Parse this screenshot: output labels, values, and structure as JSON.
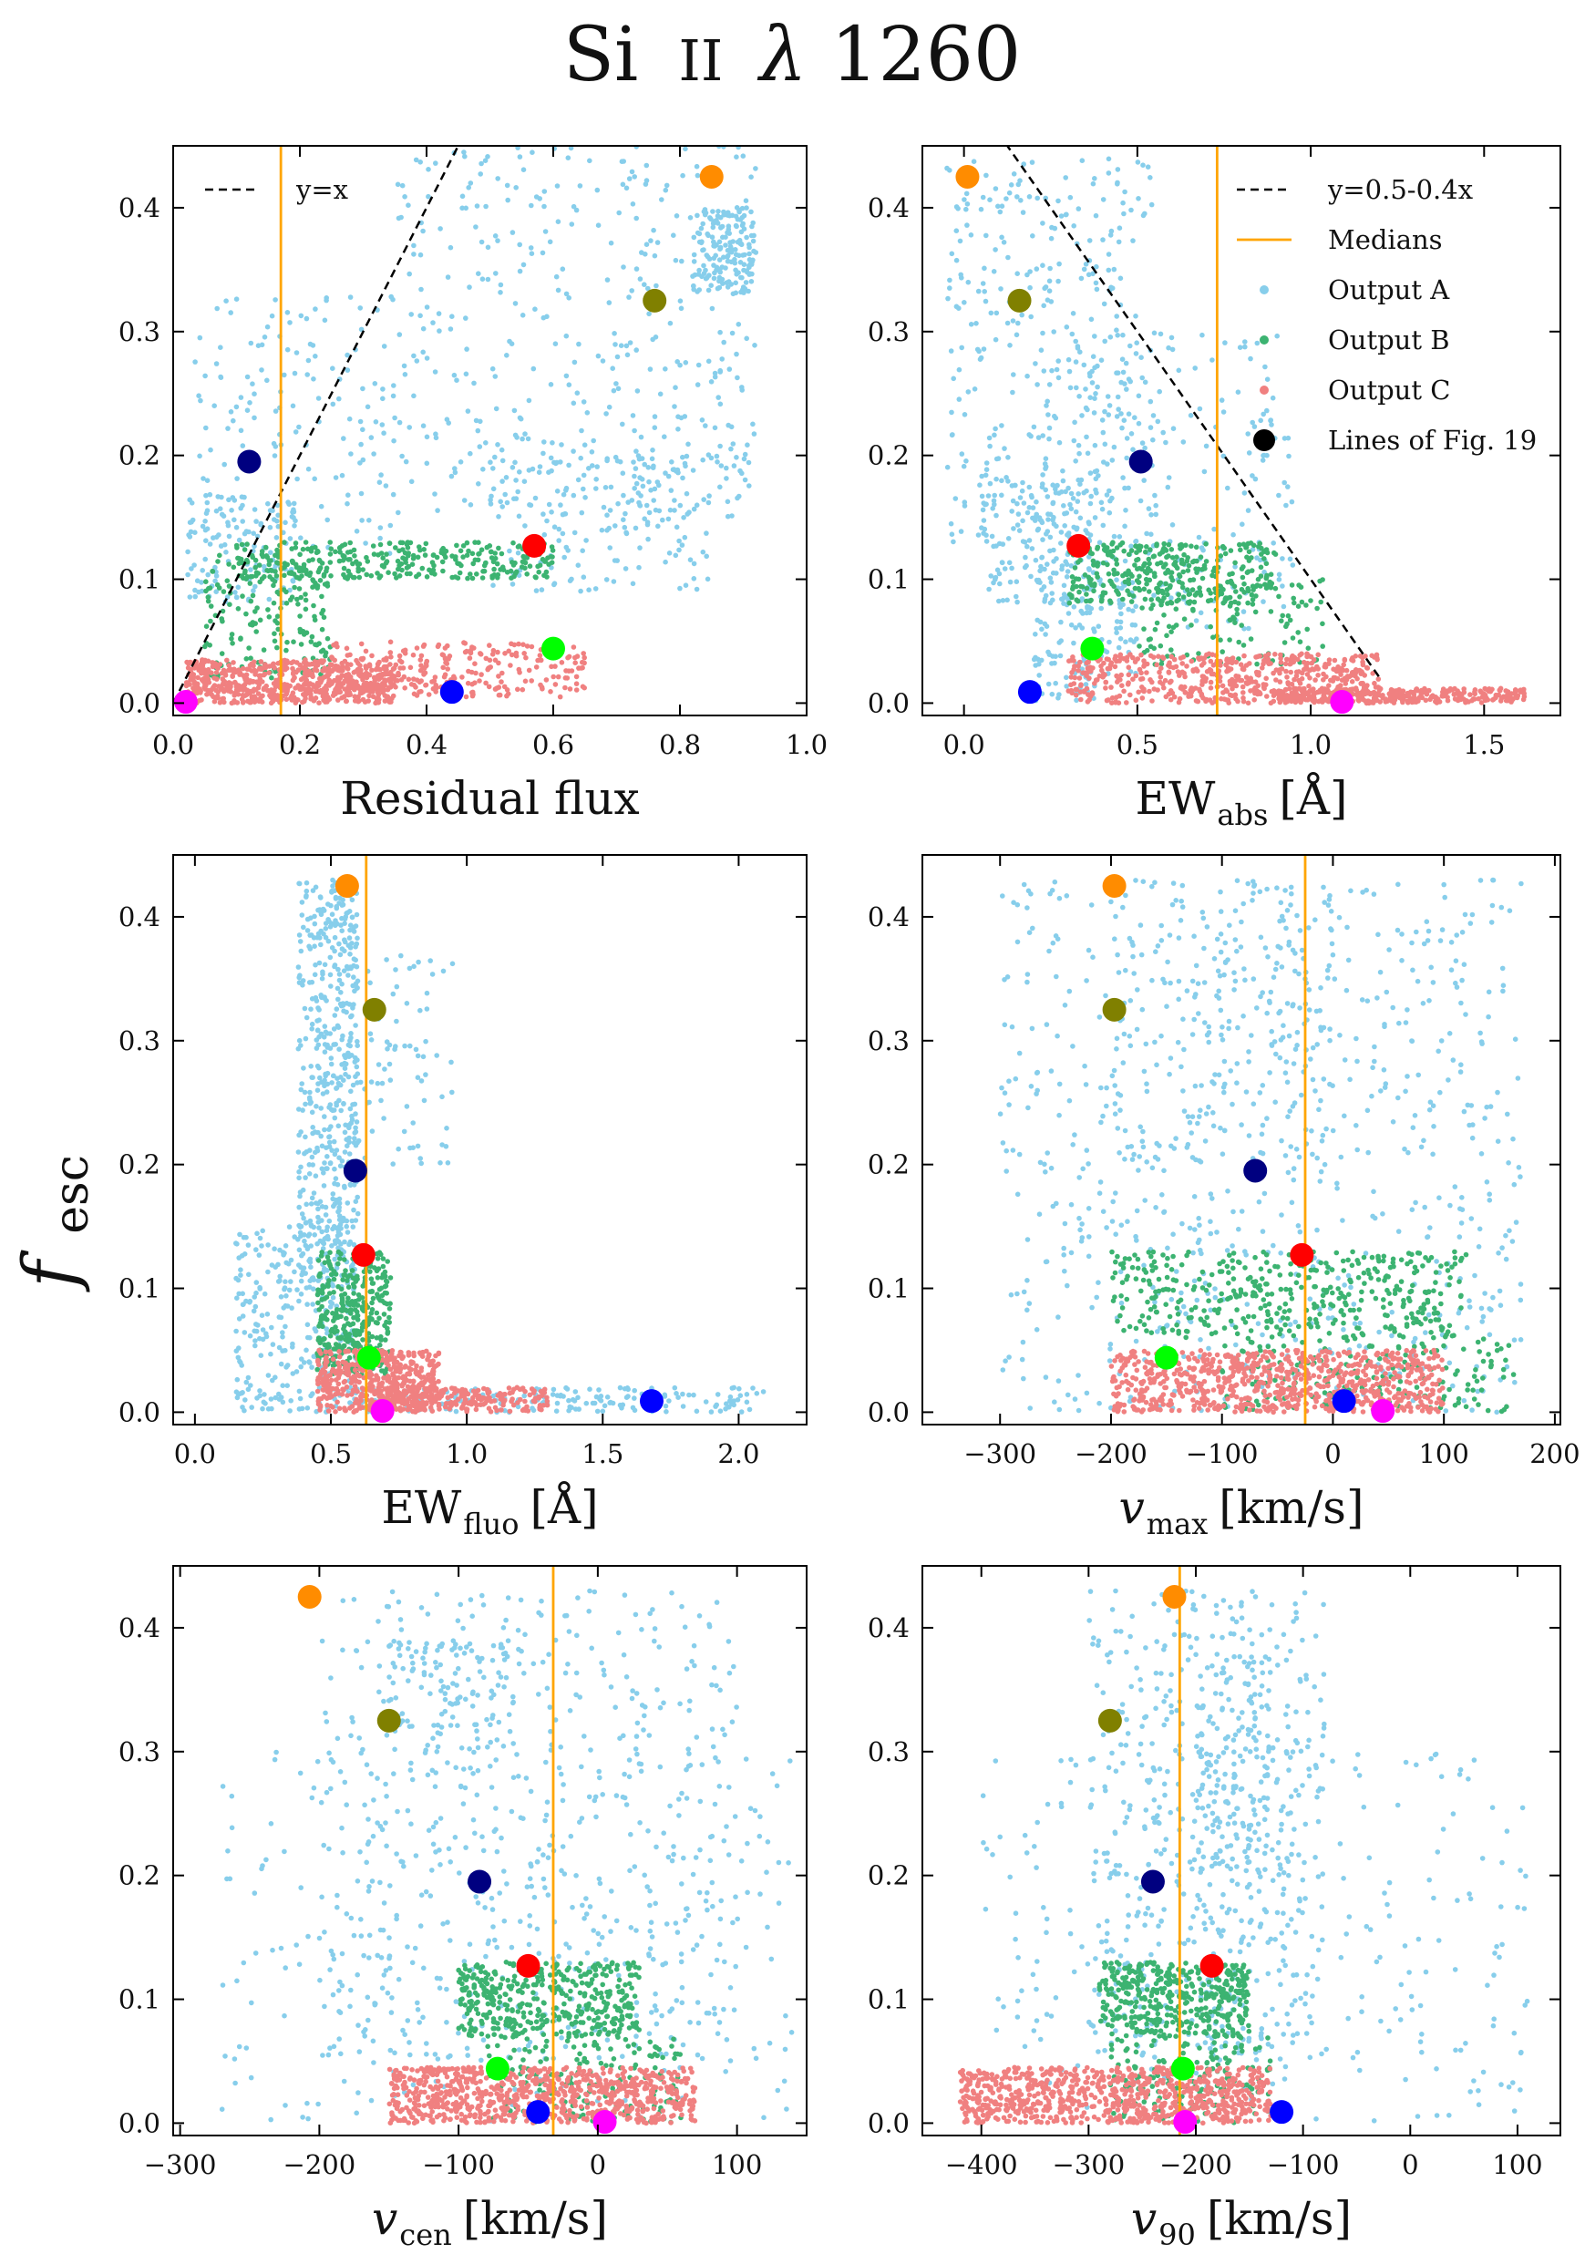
{
  "figure": {
    "title": {
      "main": "Si",
      "ion": "II",
      "lambda": "λ",
      "wave": "1260"
    },
    "ylabel": {
      "symbol": "f",
      "sub": "esc"
    },
    "colors": {
      "output_a": "#87ceeb",
      "output_b": "#3cb371",
      "output_c": "#f08080",
      "median": "#ffa500",
      "dashed": "#000000"
    }
  },
  "chart_data": [
    {
      "id": "p1",
      "type": "scatter",
      "xlabel": {
        "main": "Residual flux",
        "sub": "",
        "unit": ""
      },
      "xlim": [
        0.0,
        1.0
      ],
      "ylim": [
        -0.01,
        0.45
      ],
      "xticks": [
        0.0,
        0.2,
        0.4,
        0.6,
        0.8,
        1.0
      ],
      "xtick_labels": [
        "0.0",
        "0.2",
        "0.4",
        "0.6",
        "0.8",
        "1.0"
      ],
      "yticks": [
        0.0,
        0.1,
        0.2,
        0.3,
        0.4
      ],
      "ytick_labels": [
        "0.0",
        "0.1",
        "0.2",
        "0.3",
        "0.4"
      ],
      "median_x": 0.17,
      "ref_line": {
        "slope": 1.0,
        "intercept": 0.0,
        "x0": 0.0,
        "x1": 0.45
      },
      "legend": {
        "position": "upper-left",
        "entries": [
          {
            "kind": "dashed",
            "label": "y=x"
          }
        ]
      },
      "clouds": {
        "A": [
          {
            "n": 420,
            "x": [
              0.35,
              0.92
            ],
            "y": [
              0.15,
              0.45
            ]
          },
          {
            "n": 160,
            "x": [
              0.03,
              0.35
            ],
            "y": [
              0.12,
              0.33
            ]
          },
          {
            "n": 160,
            "x": [
              0.5,
              0.85
            ],
            "y": [
              0.09,
              0.2
            ]
          },
          {
            "n": 160,
            "x": [
              0.82,
              0.92
            ],
            "y": [
              0.33,
              0.4
            ]
          },
          {
            "n": 120,
            "x": [
              0.02,
              0.2
            ],
            "y": [
              0.08,
              0.17
            ]
          }
        ],
        "B": [
          {
            "n": 320,
            "x": [
              0.1,
              0.6
            ],
            "y": [
              0.1,
              0.13
            ]
          },
          {
            "n": 180,
            "x": [
              0.05,
              0.25
            ],
            "y": [
              0.02,
              0.12
            ]
          }
        ],
        "C": [
          {
            "n": 650,
            "x": [
              0.02,
              0.35
            ],
            "y": [
              0.0,
              0.035
            ]
          },
          {
            "n": 260,
            "x": [
              0.25,
              0.65
            ],
            "y": [
              0.005,
              0.05
            ]
          }
        ]
      },
      "markers": [
        {
          "name": "orange",
          "color": "#ff8c00",
          "x": 0.85,
          "y": 0.425
        },
        {
          "name": "olive",
          "color": "#808000",
          "x": 0.76,
          "y": 0.325
        },
        {
          "name": "navy",
          "color": "#000080",
          "x": 0.12,
          "y": 0.195
        },
        {
          "name": "red",
          "color": "#ff0000",
          "x": 0.57,
          "y": 0.127
        },
        {
          "name": "lime",
          "color": "#00ff00",
          "x": 0.6,
          "y": 0.044
        },
        {
          "name": "blue",
          "color": "#0000ff",
          "x": 0.44,
          "y": 0.009
        },
        {
          "name": "magenta",
          "color": "#ff00ff",
          "x": 0.02,
          "y": 0.001
        }
      ]
    },
    {
      "id": "p2",
      "type": "scatter",
      "xlabel": {
        "main": "EW",
        "sub": "abs",
        "unit": "[Å]"
      },
      "xlim": [
        -0.12,
        1.72
      ],
      "ylim": [
        -0.01,
        0.45
      ],
      "xticks": [
        0.0,
        0.5,
        1.0,
        1.5
      ],
      "xtick_labels": [
        "0.0",
        "0.5",
        "1.0",
        "1.5"
      ],
      "yticks": [
        0.0,
        0.1,
        0.2,
        0.3,
        0.4
      ],
      "ytick_labels": [
        "0.0",
        "0.1",
        "0.2",
        "0.3",
        "0.4"
      ],
      "median_x": 0.73,
      "ref_line": {
        "slope": -0.4,
        "intercept": 0.5,
        "x0": 0.12,
        "x1": 1.2
      },
      "legend": {
        "position": "upper-right",
        "entries": [
          {
            "kind": "dashed",
            "label": "y=0.5-0.4x"
          },
          {
            "kind": "line",
            "label": "Medians"
          },
          {
            "kind": "dotA",
            "label": "Output A"
          },
          {
            "kind": "dotB",
            "label": "Output B"
          },
          {
            "kind": "dotC",
            "label": "Output C"
          },
          {
            "kind": "big",
            "label": "Lines of Fig. 19"
          }
        ]
      },
      "clouds": {
        "A": [
          {
            "n": 330,
            "x": [
              -0.05,
              0.55
            ],
            "y": [
              0.13,
              0.44
            ]
          },
          {
            "n": 230,
            "x": [
              0.2,
              0.95
            ],
            "y": [
              0.06,
              0.3
            ]
          },
          {
            "n": 150,
            "x": [
              0.05,
              0.4
            ],
            "y": [
              0.08,
              0.18
            ]
          },
          {
            "n": 120,
            "x": [
              0.2,
              0.5
            ],
            "y": [
              0.0,
              0.1
            ]
          }
        ],
        "B": [
          {
            "n": 330,
            "x": [
              0.3,
              0.9
            ],
            "y": [
              0.08,
              0.13
            ]
          },
          {
            "n": 130,
            "x": [
              0.5,
              1.05
            ],
            "y": [
              0.03,
              0.1
            ]
          }
        ],
        "C": [
          {
            "n": 560,
            "x": [
              0.3,
              1.2
            ],
            "y": [
              0.0,
              0.04
            ]
          },
          {
            "n": 320,
            "x": [
              0.9,
              1.62
            ],
            "y": [
              0.0,
              0.012
            ]
          }
        ]
      },
      "markers": [
        {
          "name": "orange",
          "color": "#ff8c00",
          "x": 0.01,
          "y": 0.425
        },
        {
          "name": "olive",
          "color": "#808000",
          "x": 0.16,
          "y": 0.325
        },
        {
          "name": "navy",
          "color": "#000080",
          "x": 0.51,
          "y": 0.195
        },
        {
          "name": "red",
          "color": "#ff0000",
          "x": 0.33,
          "y": 0.127
        },
        {
          "name": "lime",
          "color": "#00ff00",
          "x": 0.37,
          "y": 0.044
        },
        {
          "name": "blue",
          "color": "#0000ff",
          "x": 0.19,
          "y": 0.009
        },
        {
          "name": "magenta",
          "color": "#ff00ff",
          "x": 1.09,
          "y": 0.001
        }
      ]
    },
    {
      "id": "p3",
      "type": "scatter",
      "xlabel": {
        "main": "EW",
        "sub": "fluo",
        "unit": "[Å]"
      },
      "xlim": [
        -0.08,
        2.25
      ],
      "ylim": [
        -0.01,
        0.45
      ],
      "xticks": [
        0.0,
        0.5,
        1.0,
        1.5,
        2.0
      ],
      "xtick_labels": [
        "0.0",
        "0.5",
        "1.0",
        "1.5",
        "2.0"
      ],
      "yticks": [
        0.0,
        0.1,
        0.2,
        0.3,
        0.4
      ],
      "ytick_labels": [
        "0.0",
        "0.1",
        "0.2",
        "0.3",
        "0.4"
      ],
      "median_x": 0.63,
      "ref_line": null,
      "legend": null,
      "clouds": {
        "A": [
          {
            "n": 500,
            "x": [
              0.38,
              0.6
            ],
            "y": [
              0.1,
              0.43
            ]
          },
          {
            "n": 280,
            "x": [
              0.15,
              0.6
            ],
            "y": [
              0.0,
              0.15
            ]
          },
          {
            "n": 180,
            "x": [
              0.6,
              2.1
            ],
            "y": [
              0.0,
              0.02
            ]
          },
          {
            "n": 80,
            "x": [
              0.55,
              0.95
            ],
            "y": [
              0.2,
              0.37
            ]
          }
        ],
        "B": [
          {
            "n": 380,
            "x": [
              0.45,
              0.72
            ],
            "y": [
              0.03,
              0.13
            ]
          }
        ],
        "C": [
          {
            "n": 500,
            "x": [
              0.45,
              0.9
            ],
            "y": [
              0.0,
              0.05
            ]
          },
          {
            "n": 200,
            "x": [
              0.7,
              1.3
            ],
            "y": [
              0.0,
              0.02
            ]
          }
        ]
      },
      "markers": [
        {
          "name": "orange",
          "color": "#ff8c00",
          "x": 0.56,
          "y": 0.425
        },
        {
          "name": "olive",
          "color": "#808000",
          "x": 0.66,
          "y": 0.325
        },
        {
          "name": "navy",
          "color": "#000080",
          "x": 0.59,
          "y": 0.195
        },
        {
          "name": "red",
          "color": "#ff0000",
          "x": 0.62,
          "y": 0.127
        },
        {
          "name": "lime",
          "color": "#00ff00",
          "x": 0.64,
          "y": 0.044
        },
        {
          "name": "blue",
          "color": "#0000ff",
          "x": 1.68,
          "y": 0.009
        },
        {
          "name": "magenta",
          "color": "#ff00ff",
          "x": 0.69,
          "y": 0.001
        }
      ]
    },
    {
      "id": "p4",
      "type": "scatter",
      "xlabel": {
        "main": "v",
        "sub": "max",
        "unit": "[km/s]"
      },
      "xlim": [
        -370,
        205
      ],
      "ylim": [
        -0.01,
        0.45
      ],
      "xticks": [
        -300,
        -200,
        -100,
        0,
        100,
        200
      ],
      "xtick_labels": [
        "−300",
        "−200",
        "−100",
        "0",
        "100",
        "200"
      ],
      "yticks": [
        0.0,
        0.1,
        0.2,
        0.3,
        0.4
      ],
      "ytick_labels": [
        "0.0",
        "0.1",
        "0.2",
        "0.3",
        "0.4"
      ],
      "median_x": -25,
      "ref_line": null,
      "legend": null,
      "clouds": {
        "A": [
          {
            "n": 700,
            "x": [
              -300,
              170
            ],
            "y": [
              0.0,
              0.43
            ]
          },
          {
            "n": 180,
            "x": [
              -200,
              0
            ],
            "y": [
              0.2,
              0.43
            ]
          }
        ],
        "B": [
          {
            "n": 420,
            "x": [
              -200,
              120
            ],
            "y": [
              0.06,
              0.13
            ]
          },
          {
            "n": 180,
            "x": [
              -100,
              165
            ],
            "y": [
              0.0,
              0.06
            ]
          }
        ],
        "C": [
          {
            "n": 820,
            "x": [
              -200,
              100
            ],
            "y": [
              0.0,
              0.05
            ]
          }
        ]
      },
      "markers": [
        {
          "name": "orange",
          "color": "#ff8c00",
          "x": -197,
          "y": 0.425
        },
        {
          "name": "olive",
          "color": "#808000",
          "x": -197,
          "y": 0.325
        },
        {
          "name": "navy",
          "color": "#000080",
          "x": -70,
          "y": 0.195
        },
        {
          "name": "red",
          "color": "#ff0000",
          "x": -28,
          "y": 0.127
        },
        {
          "name": "lime",
          "color": "#00ff00",
          "x": -150,
          "y": 0.044
        },
        {
          "name": "blue",
          "color": "#0000ff",
          "x": 10,
          "y": 0.009
        },
        {
          "name": "magenta",
          "color": "#ff00ff",
          "x": 45,
          "y": 0.001
        }
      ]
    },
    {
      "id": "p5",
      "type": "scatter",
      "xlabel": {
        "main": "v",
        "sub": "cen",
        "unit": "[km/s]"
      },
      "xlim": [
        -305,
        150
      ],
      "ylim": [
        -0.01,
        0.45
      ],
      "xticks": [
        -300,
        -200,
        -100,
        0,
        100
      ],
      "xtick_labels": [
        "−300",
        "−200",
        "−100",
        "0",
        "100"
      ],
      "yticks": [
        0.0,
        0.1,
        0.2,
        0.3,
        0.4
      ],
      "ytick_labels": [
        "0.0",
        "0.1",
        "0.2",
        "0.3",
        "0.4"
      ],
      "median_x": -32,
      "ref_line": null,
      "legend": null,
      "clouds": {
        "A": [
          {
            "n": 480,
            "x": [
              -200,
              100
            ],
            "y": [
              0.05,
              0.43
            ]
          },
          {
            "n": 260,
            "x": [
              -270,
              140
            ],
            "y": [
              0.0,
              0.3
            ]
          },
          {
            "n": 120,
            "x": [
              -150,
              -60
            ],
            "y": [
              0.3,
              0.39
            ]
          }
        ],
        "B": [
          {
            "n": 420,
            "x": [
              -100,
              30
            ],
            "y": [
              0.07,
              0.13
            ]
          },
          {
            "n": 170,
            "x": [
              -80,
              60
            ],
            "y": [
              0.0,
              0.07
            ]
          }
        ],
        "C": [
          {
            "n": 820,
            "x": [
              -150,
              70
            ],
            "y": [
              0.0,
              0.045
            ]
          }
        ]
      },
      "markers": [
        {
          "name": "orange",
          "color": "#ff8c00",
          "x": -207,
          "y": 0.425
        },
        {
          "name": "olive",
          "color": "#808000",
          "x": -150,
          "y": 0.325
        },
        {
          "name": "navy",
          "color": "#000080",
          "x": -85,
          "y": 0.195
        },
        {
          "name": "red",
          "color": "#ff0000",
          "x": -50,
          "y": 0.127
        },
        {
          "name": "lime",
          "color": "#00ff00",
          "x": -72,
          "y": 0.044
        },
        {
          "name": "blue",
          "color": "#0000ff",
          "x": -43,
          "y": 0.009
        },
        {
          "name": "magenta",
          "color": "#ff00ff",
          "x": 5,
          "y": 0.001
        }
      ]
    },
    {
      "id": "p6",
      "type": "scatter",
      "xlabel": {
        "main": "v",
        "sub": "90",
        "unit": "[km/s]"
      },
      "xlim": [
        -455,
        140
      ],
      "ylim": [
        -0.01,
        0.45
      ],
      "xticks": [
        -400,
        -300,
        -200,
        -100,
        0,
        100
      ],
      "xtick_labels": [
        "−400",
        "−300",
        "−200",
        "−100",
        "0",
        "100"
      ],
      "yticks": [
        0.0,
        0.1,
        0.2,
        0.3,
        0.4
      ],
      "ytick_labels": [
        "0.0",
        "0.1",
        "0.2",
        "0.3",
        "0.4"
      ],
      "median_x": -215,
      "ref_line": null,
      "legend": null,
      "clouds": {
        "A": [
          {
            "n": 480,
            "x": [
              -300,
              -80
            ],
            "y": [
              0.05,
              0.43
            ]
          },
          {
            "n": 260,
            "x": [
              -400,
              110
            ],
            "y": [
              0.0,
              0.3
            ]
          },
          {
            "n": 150,
            "x": [
              -200,
              -130
            ],
            "y": [
              0.2,
              0.38
            ]
          }
        ],
        "B": [
          {
            "n": 420,
            "x": [
              -290,
              -150
            ],
            "y": [
              0.07,
              0.13
            ]
          },
          {
            "n": 170,
            "x": [
              -280,
              -130
            ],
            "y": [
              0.0,
              0.07
            ]
          }
        ],
        "C": [
          {
            "n": 820,
            "x": [
              -420,
              -130
            ],
            "y": [
              0.0,
              0.045
            ]
          }
        ]
      },
      "markers": [
        {
          "name": "orange",
          "color": "#ff8c00",
          "x": -220,
          "y": 0.425
        },
        {
          "name": "olive",
          "color": "#808000",
          "x": -280,
          "y": 0.325
        },
        {
          "name": "navy",
          "color": "#000080",
          "x": -240,
          "y": 0.195
        },
        {
          "name": "red",
          "color": "#ff0000",
          "x": -185,
          "y": 0.127
        },
        {
          "name": "lime",
          "color": "#00ff00",
          "x": -212,
          "y": 0.044
        },
        {
          "name": "blue",
          "color": "#0000ff",
          "x": -120,
          "y": 0.009
        },
        {
          "name": "magenta",
          "color": "#ff00ff",
          "x": -210,
          "y": 0.001
        }
      ]
    }
  ]
}
